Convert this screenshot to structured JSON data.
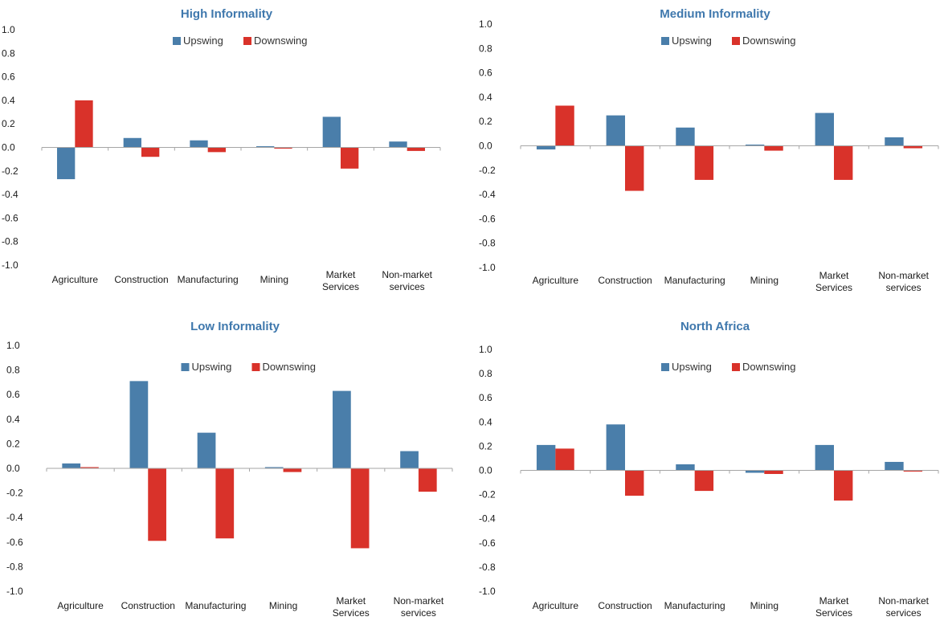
{
  "colors": {
    "upswing": "#4a7eaa",
    "downswing": "#d9322a",
    "title": "#3f78ad",
    "axis": "#a6a6a6"
  },
  "chart_data": [
    {
      "type": "bar",
      "title": "High Informality",
      "categories": [
        "Agriculture",
        "Construction",
        "Manufacturing",
        "Mining",
        "Market Services",
        "Non-market services"
      ],
      "series": [
        {
          "name": "Upswing",
          "values": [
            -0.27,
            0.08,
            0.06,
            0.01,
            0.26,
            0.05
          ]
        },
        {
          "name": "Downswing",
          "values": [
            0.4,
            -0.08,
            -0.04,
            -0.01,
            -0.18,
            -0.03
          ]
        }
      ],
      "yticks": [
        "1.0",
        "0.8",
        "0.6",
        "0.4",
        "0.2",
        "0.0",
        "-0.2",
        "-0.4",
        "-0.6",
        "-0.8",
        "-1.0"
      ],
      "ylim": [
        -1.0,
        1.0
      ],
      "legend": "top-center"
    },
    {
      "type": "bar",
      "title": "Medium Informality",
      "categories": [
        "Agriculture",
        "Construction",
        "Manufacturing",
        "Mining",
        "Market Services",
        "Non-market services"
      ],
      "series": [
        {
          "name": "Upswing",
          "values": [
            -0.03,
            0.25,
            0.15,
            0.01,
            0.27,
            0.07
          ]
        },
        {
          "name": "Downswing",
          "values": [
            0.33,
            -0.37,
            -0.28,
            -0.04,
            -0.28,
            -0.02
          ]
        }
      ],
      "yticks": [
        "1.0",
        "0.8",
        "0.6",
        "0.4",
        "0.2",
        "0.0",
        "-0.2",
        "-0.4",
        "-0.6",
        "-0.8",
        "-1.0"
      ],
      "ylim": [
        -1.0,
        1.0
      ],
      "legend": "top-center"
    },
    {
      "type": "bar",
      "title": "Low Informality",
      "categories": [
        "Agriculture",
        "Construction",
        "Manufacturing",
        "Mining",
        "Market Services",
        "Non-market services"
      ],
      "series": [
        {
          "name": "Upswing",
          "values": [
            0.04,
            0.71,
            0.29,
            0.01,
            0.63,
            0.14
          ]
        },
        {
          "name": "Downswing",
          "values": [
            0.01,
            -0.59,
            -0.57,
            -0.03,
            -0.65,
            -0.19
          ]
        }
      ],
      "yticks": [
        "1.0",
        "0.8",
        "0.6",
        "0.4",
        "0.2",
        "0.0",
        "-0.2",
        "-0.4",
        "-0.6",
        "-0.8",
        "-1.0"
      ],
      "ylim": [
        -1.0,
        1.0
      ],
      "legend": "top-center"
    },
    {
      "type": "bar",
      "title": "North Africa",
      "categories": [
        "Agriculture",
        "Construction",
        "Manufacturing",
        "Mining",
        "Market Services",
        "Non-market services"
      ],
      "series": [
        {
          "name": "Upswing",
          "values": [
            0.21,
            0.38,
            0.05,
            -0.02,
            0.21,
            0.07
          ]
        },
        {
          "name": "Downswing",
          "values": [
            0.18,
            -0.21,
            -0.17,
            -0.03,
            -0.25,
            -0.01
          ]
        }
      ],
      "yticks": [
        "1.0",
        "0.8",
        "0.6",
        "0.4",
        "0.2",
        "0.0",
        "-0.2",
        "-0.4",
        "-0.6",
        "-0.8",
        "-1.0"
      ],
      "ylim": [
        -1.0,
        1.0
      ],
      "legend": "top-center"
    }
  ]
}
